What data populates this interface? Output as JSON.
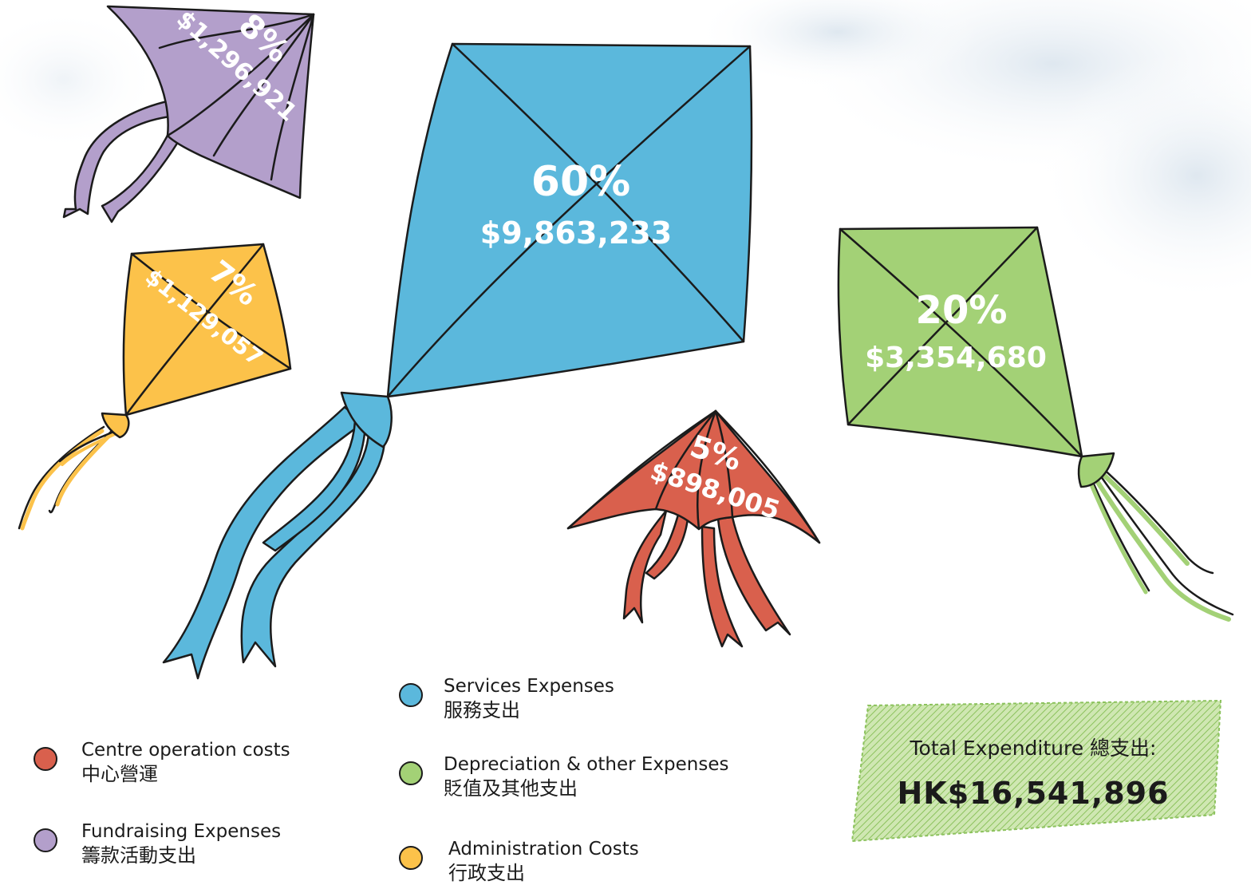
{
  "chart_data": {
    "type": "pie",
    "categories": [
      "Services Expenses",
      "Depreciation & other Expenses",
      "Fundraising Expenses",
      "Administration Costs",
      "Centre operation costs"
    ],
    "values": [
      9863233,
      3354680,
      1296921,
      1129057,
      898005
    ],
    "percent_labels": [
      "60%",
      "20%",
      "8%",
      "7%",
      "5%"
    ],
    "value_labels": [
      "$9,863,233",
      "$3,354,680",
      "$1,296,921",
      "$1,129,057",
      "$898,005"
    ],
    "colors": {
      "services": "#5bb8dc",
      "depreciation": "#a3d176",
      "fundraising": "#b39fcb",
      "administration": "#fcc24a",
      "centre": "#d9604d"
    }
  },
  "kites": {
    "services": {
      "percent": "60%",
      "value": "$9,863,233"
    },
    "depreciation": {
      "percent": "20%",
      "value": "$3,354,680"
    },
    "fundraising": {
      "percent": "8%",
      "value": "$1,296,921"
    },
    "administration": {
      "percent": "7%",
      "value": "$1,129,057"
    },
    "centre": {
      "percent": "5%",
      "value": "$898,005"
    }
  },
  "legend": {
    "centre": {
      "en": "Centre operation costs",
      "zh": "中心營運",
      "color": "#d9604d"
    },
    "fundraising": {
      "en": "Fundraising Expenses",
      "zh": "籌款活動支出",
      "color": "#b39fcb"
    },
    "services": {
      "en": "Services Expenses",
      "zh": "服務支出",
      "color": "#5bb8dc"
    },
    "depreciation": {
      "en": "Depreciation & other Expenses",
      "zh": "貶值及其他支出",
      "color": "#a3d176"
    },
    "administration": {
      "en": "Administration Costs",
      "zh": "行政支出",
      "color": "#fcc24a"
    }
  },
  "total": {
    "label": "Total Expenditure 總支出:",
    "value": "HK$16,541,896"
  }
}
